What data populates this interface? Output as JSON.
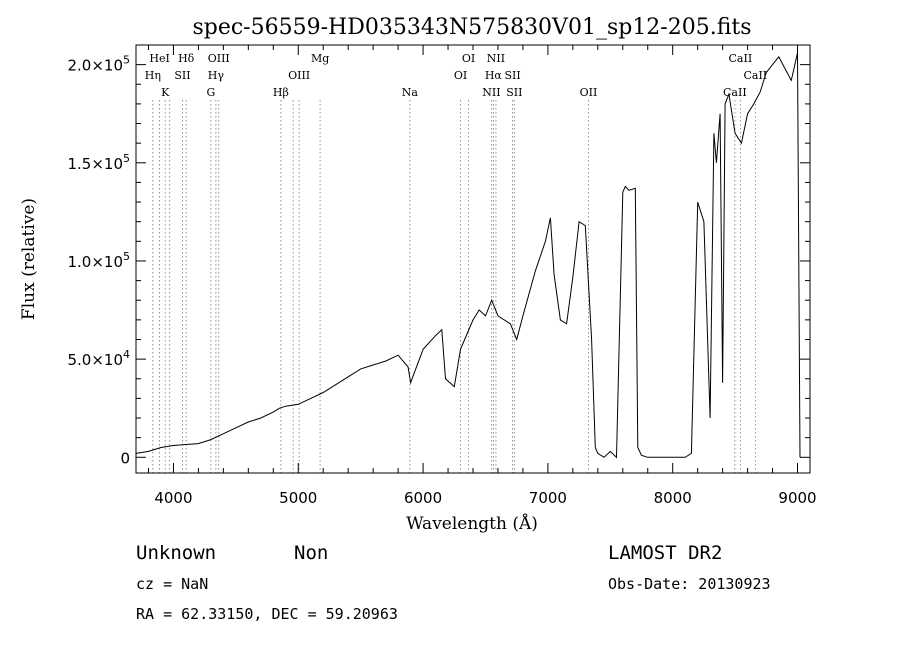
{
  "chart_data": {
    "type": "line",
    "title": "spec-56559-HD035343N575830V01_sp12-205.fits",
    "xlabel": "Wavelength (Å)",
    "ylabel": "Flux (relative)",
    "xlim": [
      3700,
      9100
    ],
    "ylim": [
      -8000,
      210000
    ],
    "x_ticks": [
      4000,
      5000,
      6000,
      7000,
      8000,
      9000
    ],
    "x_tick_labels": [
      "4000",
      "5000",
      "6000",
      "7000",
      "8000",
      "9000"
    ],
    "y_ticks": [
      0,
      50000,
      100000,
      150000,
      200000
    ],
    "y_tick_labels": [
      {
        "mant": "0",
        "exp": ""
      },
      {
        "mant": "5.0×10",
        "exp": "4"
      },
      {
        "mant": "1.0×10",
        "exp": "5"
      },
      {
        "mant": "1.5×10",
        "exp": "5"
      },
      {
        "mant": "2.0×10",
        "exp": "5"
      }
    ],
    "series": [
      {
        "x": [
          3700,
          3800,
          3900,
          4000,
          4100,
          4200,
          4300,
          4400,
          4500,
          4600,
          4700,
          4800,
          4850,
          4900,
          5000,
          5100,
          5200,
          5300,
          5400,
          5500,
          5600,
          5700,
          5800,
          5880,
          5900,
          6000,
          6100,
          6150,
          6180,
          6250,
          6300,
          6400,
          6450,
          6500,
          6550,
          6600,
          6700,
          6750,
          6800,
          6900,
          6980,
          7020,
          7050,
          7100,
          7150,
          7200,
          7250,
          7300,
          7350,
          7380,
          7400,
          7450,
          7500,
          7550,
          7600,
          7620,
          7650,
          7700,
          7720,
          7750,
          7800,
          7850,
          7900,
          8000,
          8100,
          8150,
          8200,
          8250,
          8300,
          8330,
          8350,
          8380,
          8400,
          8420,
          8450,
          8500,
          8550,
          8600,
          8650,
          8700,
          8750,
          8800,
          8850,
          8900,
          8950,
          9000,
          9020
        ],
        "y": [
          2000,
          3000,
          5000,
          6000,
          6500,
          7000,
          9000,
          12000,
          15000,
          18000,
          20000,
          23000,
          25000,
          26000,
          27000,
          30000,
          33000,
          37000,
          41000,
          45000,
          47000,
          49000,
          52000,
          46000,
          38000,
          55000,
          62000,
          65000,
          40000,
          36000,
          55000,
          70000,
          75000,
          72000,
          80000,
          72000,
          68000,
          60000,
          72000,
          95000,
          110000,
          122000,
          93000,
          70000,
          68000,
          92000,
          120000,
          118000,
          60000,
          5000,
          2000,
          0,
          3000,
          0,
          135000,
          138000,
          136000,
          137000,
          5000,
          1000,
          0,
          0,
          0,
          0,
          0,
          2000,
          130000,
          120000,
          20000,
          165000,
          150000,
          175000,
          38000,
          180000,
          185000,
          165000,
          160000,
          175000,
          180000,
          186000,
          196000,
          200000,
          204000,
          198000,
          192000,
          206000,
          0
        ]
      }
    ],
    "reference_lines": [
      {
        "wl": 3835,
        "labels": [
          {
            "text": "Hη",
            "row": 2
          }
        ]
      },
      {
        "wl": 3889,
        "labels": [
          {
            "text": "HeI",
            "row": 1
          }
        ]
      },
      {
        "wl": 3934,
        "labels": [
          {
            "text": "K",
            "row": 3
          }
        ]
      },
      {
        "wl": 3970,
        "labels": []
      },
      {
        "wl": 4072,
        "labels": [
          {
            "text": "SII",
            "row": 2
          }
        ]
      },
      {
        "wl": 4102,
        "labels": [
          {
            "text": "Hδ",
            "row": 1
          }
        ]
      },
      {
        "wl": 4300,
        "labels": [
          {
            "text": "G",
            "row": 3
          }
        ]
      },
      {
        "wl": 4340,
        "labels": [
          {
            "text": "Hγ",
            "row": 2
          }
        ]
      },
      {
        "wl": 4363,
        "labels": [
          {
            "text": "OIII",
            "row": 1
          }
        ]
      },
      {
        "wl": 4861,
        "labels": [
          {
            "text": "Hβ",
            "row": 3
          }
        ]
      },
      {
        "wl": 4959,
        "labels": []
      },
      {
        "wl": 5007,
        "labels": [
          {
            "text": "OIII",
            "row": 2
          }
        ]
      },
      {
        "wl": 5175,
        "labels": [
          {
            "text": "Mg",
            "row": 1
          }
        ]
      },
      {
        "wl": 5894,
        "labels": [
          {
            "text": "Na",
            "row": 3
          }
        ]
      },
      {
        "wl": 6300,
        "labels": [
          {
            "text": "OI",
            "row": 2
          }
        ]
      },
      {
        "wl": 6364,
        "labels": [
          {
            "text": "OI",
            "row": 1
          }
        ]
      },
      {
        "wl": 6548,
        "labels": [
          {
            "text": "NII",
            "row": 3
          }
        ]
      },
      {
        "wl": 6563,
        "labels": [
          {
            "text": "Hα",
            "row": 2
          }
        ]
      },
      {
        "wl": 6584,
        "labels": [
          {
            "text": "NII",
            "row": 1
          }
        ]
      },
      {
        "wl": 6717,
        "labels": [
          {
            "text": "SII",
            "row": 2
          }
        ]
      },
      {
        "wl": 6731,
        "labels": [
          {
            "text": "SII",
            "row": 3
          }
        ]
      },
      {
        "wl": 7325,
        "labels": [
          {
            "text": "OII",
            "row": 3
          }
        ]
      },
      {
        "wl": 8498,
        "labels": [
          {
            "text": "CaII",
            "row": 3
          }
        ]
      },
      {
        "wl": 8542,
        "labels": [
          {
            "text": "CaII",
            "row": 1
          }
        ]
      },
      {
        "wl": 8662,
        "labels": [
          {
            "text": "CaII",
            "row": 2
          }
        ]
      }
    ]
  },
  "info": {
    "classification": "Unknown",
    "subclass": "Non",
    "survey": "LAMOST DR2",
    "redshift": "cz = NaN",
    "obs_date": "Obs-Date: 20130923",
    "coords": "RA =  62.33150, DEC =  59.20963"
  }
}
